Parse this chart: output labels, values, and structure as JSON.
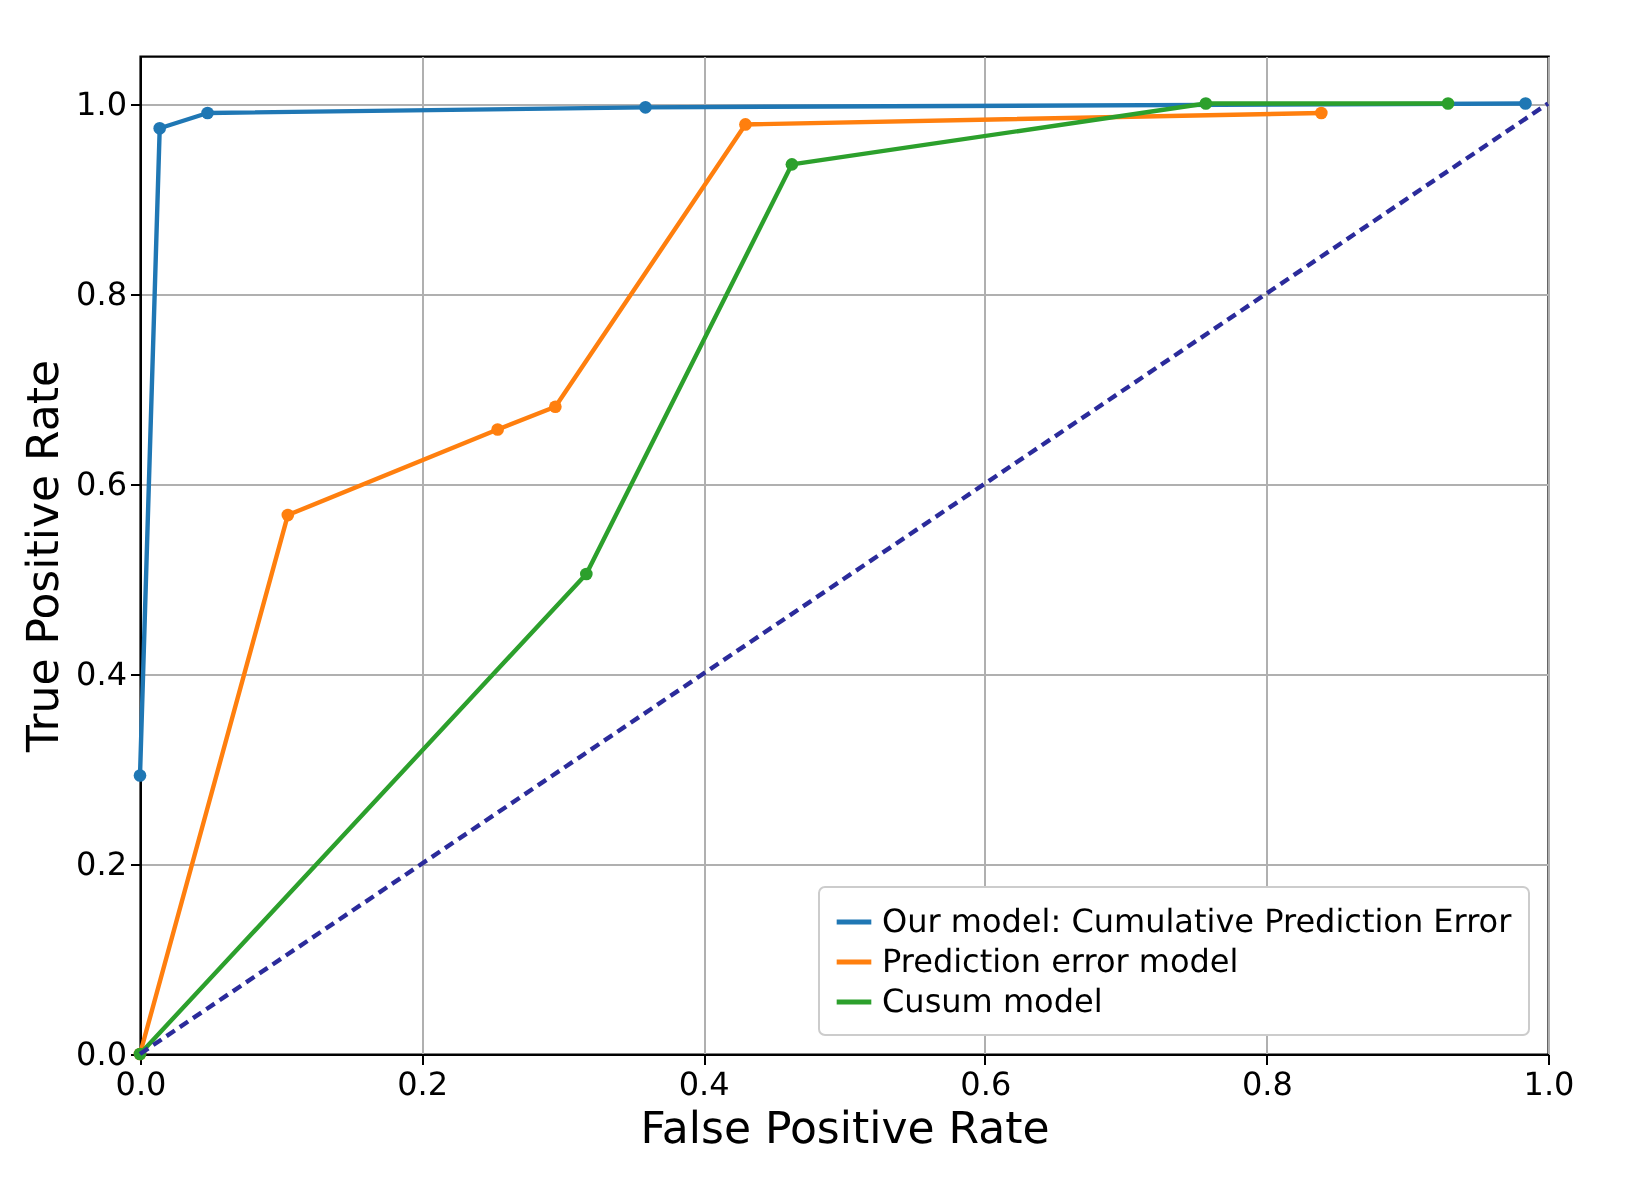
{
  "chart_data": {
    "type": "line",
    "xlabel": "False Positive Rate",
    "ylabel": "True Positive Rate",
    "xlim": [
      0,
      1
    ],
    "ylim": [
      0,
      1.05
    ],
    "xticks": [
      {
        "value": 0,
        "label": "0.0"
      },
      {
        "value": 0.2,
        "label": "0.2"
      },
      {
        "value": 0.4,
        "label": "0.4"
      },
      {
        "value": 0.6,
        "label": "0.6"
      },
      {
        "value": 0.8,
        "label": "0.8"
      },
      {
        "value": 1,
        "label": "1.0"
      }
    ],
    "yticks": [
      {
        "value": 0,
        "label": "0.0"
      },
      {
        "value": 0.2,
        "label": "0.2"
      },
      {
        "value": 0.4,
        "label": "0.4"
      },
      {
        "value": 0.6,
        "label": "0.6"
      },
      {
        "value": 0.8,
        "label": "0.8"
      },
      {
        "value": 1,
        "label": "1.0"
      }
    ],
    "grid": true,
    "legend": "bottom right",
    "marker": "circle",
    "series": [
      {
        "name": "Our model: Cumulative Prediction Error",
        "color": "#1f77b4",
        "x": [
          0,
          0.014,
          0.048,
          0.359,
          0.984
        ],
        "values": [
          0.293,
          0.974,
          0.99,
          0.996,
          1.0
        ]
      },
      {
        "name": "Prediction error model",
        "color": "#ff7f0e",
        "x": [
          0,
          0.105,
          0.254,
          0.295,
          0.43,
          0.839
        ],
        "values": [
          0,
          0.567,
          0.657,
          0.681,
          0.978,
          0.99
        ]
      },
      {
        "name": "Cusum  model",
        "color": "#2ca02c",
        "x": [
          0,
          0.317,
          0.463,
          0.757,
          0.929
        ],
        "values": [
          0,
          0.505,
          0.936,
          1.0,
          1.0
        ]
      },
      {
        "color": "#2b2b9b",
        "x": [
          0,
          1
        ],
        "values": [
          0,
          1
        ],
        "marker": "none",
        "line_style": "dashed"
      }
    ]
  }
}
